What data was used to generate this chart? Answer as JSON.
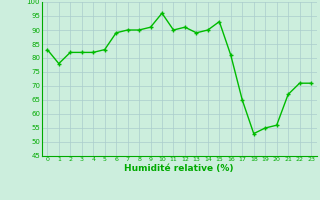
{
  "x": [
    0,
    1,
    2,
    3,
    4,
    5,
    6,
    7,
    8,
    9,
    10,
    11,
    12,
    13,
    14,
    15,
    16,
    17,
    18,
    19,
    20,
    21,
    22,
    23
  ],
  "y": [
    83,
    78,
    82,
    82,
    82,
    83,
    89,
    90,
    90,
    91,
    96,
    90,
    91,
    89,
    90,
    93,
    81,
    65,
    53,
    55,
    56,
    67,
    71,
    71
  ],
  "line_color": "#00bb00",
  "marker_color": "#00bb00",
  "bg_color": "#cceedd",
  "grid_color": "#aacccc",
  "xlabel": "Humidité relative (%)",
  "xlabel_color": "#00aa00",
  "ylim": [
    45,
    100
  ],
  "xlim": [
    -0.5,
    23.5
  ],
  "yticks": [
    45,
    50,
    55,
    60,
    65,
    70,
    75,
    80,
    85,
    90,
    95,
    100
  ],
  "xticks": [
    0,
    1,
    2,
    3,
    4,
    5,
    6,
    7,
    8,
    9,
    10,
    11,
    12,
    13,
    14,
    15,
    16,
    17,
    18,
    19,
    20,
    21,
    22,
    23
  ],
  "tick_color": "#00aa00",
  "line_width": 1.0,
  "marker_size": 3,
  "figsize": [
    3.2,
    2.0
  ],
  "dpi": 100
}
